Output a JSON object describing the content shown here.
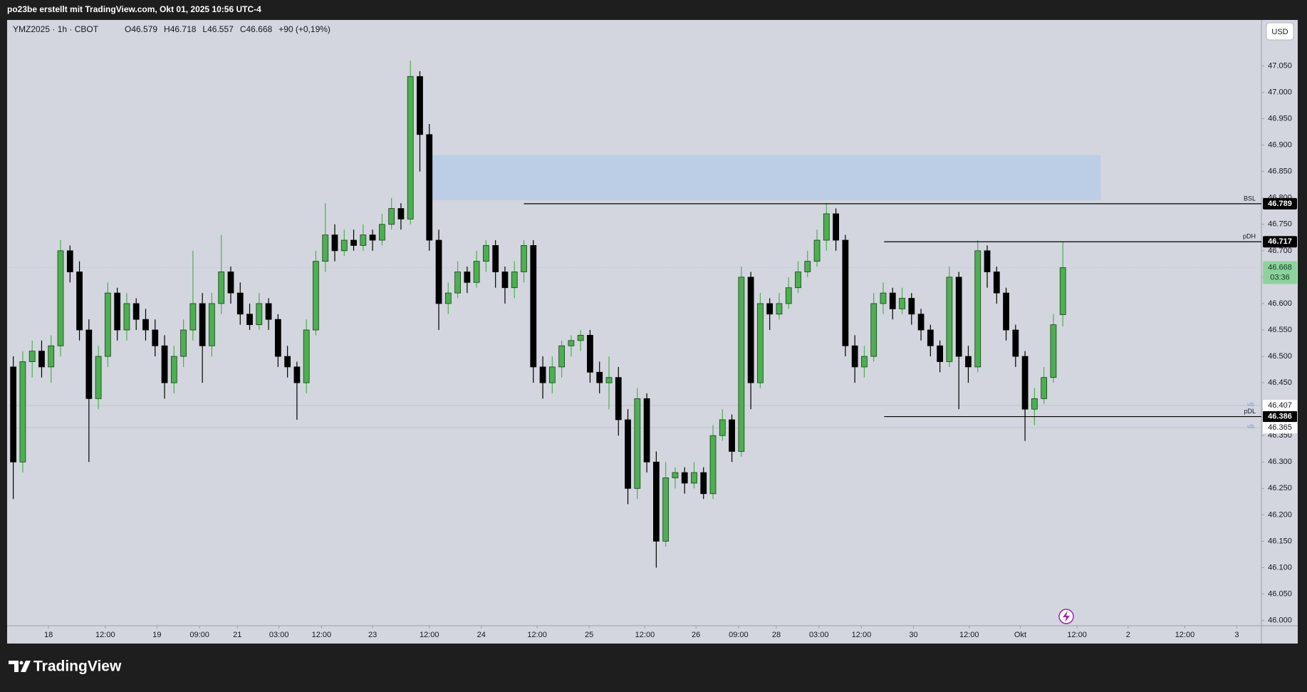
{
  "header": "po23be erstellt mit TradingView.com, Okt 01, 2025 10:56 UTC-4",
  "footer_logo": "TradingView",
  "chart_data": {
    "type": "candlestick",
    "title": "YMZ2025 · 1h · CBOT",
    "legend_values": [
      "O46.579",
      "H46.718",
      "L46.557",
      "C46.668",
      "+90 (+0,19%)"
    ],
    "currency": "USD",
    "countdown": "03:36",
    "up_color": "#4caf50",
    "down_color": "#000000",
    "ylim": [
      45.99,
      47.137
    ],
    "yticks": [
      {
        "value": 46.0,
        "label": "46.000"
      },
      {
        "value": 46.05,
        "label": "46.050"
      },
      {
        "value": 46.1,
        "label": "46.100"
      },
      {
        "value": 46.15,
        "label": "46.150"
      },
      {
        "value": 46.2,
        "label": "46.200"
      },
      {
        "value": 46.25,
        "label": "46.250"
      },
      {
        "value": 46.3,
        "label": "46.300"
      },
      {
        "value": 46.35,
        "label": "46.350"
      },
      {
        "value": 46.4,
        "label": "46.400"
      },
      {
        "value": 46.45,
        "label": "46.450"
      },
      {
        "value": 46.5,
        "label": "46.500"
      },
      {
        "value": 46.55,
        "label": "46.550"
      },
      {
        "value": 46.6,
        "label": "46.600"
      },
      {
        "value": 46.65,
        "label": "46.650"
      },
      {
        "value": 46.7,
        "label": "46.700"
      },
      {
        "value": 46.75,
        "label": "46.750"
      },
      {
        "value": 46.8,
        "label": "46.800"
      },
      {
        "value": 46.85,
        "label": "46.850"
      },
      {
        "value": 46.9,
        "label": "46.900"
      },
      {
        "value": 46.95,
        "label": "46.950"
      },
      {
        "value": 47.0,
        "label": "47.000"
      },
      {
        "value": 47.05,
        "label": "47.050"
      }
    ],
    "xlim": [
      -0.5,
      132.0
    ],
    "xticks": [
      {
        "value": 3.73,
        "label": "18"
      },
      {
        "value": 9.73,
        "label": "12:00"
      },
      {
        "value": 15.2,
        "label": "19"
      },
      {
        "value": 19.7,
        "label": "09:00"
      },
      {
        "value": 23.7,
        "label": "21"
      },
      {
        "value": 28.1,
        "label": "03:00"
      },
      {
        "value": 32.6,
        "label": "12:00"
      },
      {
        "value": 38.0,
        "label": "23"
      },
      {
        "value": 44.0,
        "label": "12:00"
      },
      {
        "value": 49.5,
        "label": "24"
      },
      {
        "value": 55.4,
        "label": "12:00"
      },
      {
        "value": 60.9,
        "label": "25"
      },
      {
        "value": 66.8,
        "label": "12:00"
      },
      {
        "value": 72.2,
        "label": "26"
      },
      {
        "value": 76.7,
        "label": "09:00"
      },
      {
        "value": 80.7,
        "label": "28"
      },
      {
        "value": 85.2,
        "label": "03:00"
      },
      {
        "value": 89.7,
        "label": "12:00"
      },
      {
        "value": 95.2,
        "label": "30"
      },
      {
        "value": 101.1,
        "label": "12:00"
      },
      {
        "value": 106.5,
        "label": "Okt"
      },
      {
        "value": 112.5,
        "label": "12:00"
      },
      {
        "value": 117.9,
        "label": "2"
      },
      {
        "value": 123.9,
        "label": "12:00"
      },
      {
        "value": 129.4,
        "label": "3"
      }
    ],
    "ohlc": [
      [
        46.48,
        46.5,
        46.23,
        46.3
      ],
      [
        46.3,
        46.51,
        46.28,
        46.49
      ],
      [
        46.49,
        46.53,
        46.46,
        46.51
      ],
      [
        46.51,
        46.53,
        46.46,
        46.48
      ],
      [
        46.48,
        46.54,
        46.45,
        46.52
      ],
      [
        46.52,
        46.72,
        46.5,
        46.7
      ],
      [
        46.7,
        46.71,
        46.64,
        46.66
      ],
      [
        46.66,
        46.68,
        46.53,
        46.55
      ],
      [
        46.55,
        46.57,
        46.3,
        46.42
      ],
      [
        46.42,
        46.52,
        46.4,
        46.5
      ],
      [
        46.5,
        46.64,
        46.48,
        46.62
      ],
      [
        46.62,
        46.63,
        46.53,
        46.55
      ],
      [
        46.55,
        46.62,
        46.53,
        46.6
      ],
      [
        46.6,
        46.61,
        46.55,
        46.57
      ],
      [
        46.57,
        46.59,
        46.53,
        46.55
      ],
      [
        46.55,
        46.57,
        46.5,
        46.52
      ],
      [
        46.52,
        46.54,
        46.42,
        46.45
      ],
      [
        46.45,
        46.52,
        46.43,
        46.5
      ],
      [
        46.5,
        46.57,
        46.48,
        46.55
      ],
      [
        46.55,
        46.7,
        46.53,
        46.6
      ],
      [
        46.6,
        46.62,
        46.45,
        46.52
      ],
      [
        46.52,
        46.62,
        46.5,
        46.6
      ],
      [
        46.6,
        46.73,
        46.58,
        46.66
      ],
      [
        46.66,
        46.67,
        46.6,
        46.62
      ],
      [
        46.62,
        46.64,
        46.56,
        46.58
      ],
      [
        46.58,
        46.6,
        46.55,
        46.56
      ],
      [
        46.56,
        46.62,
        46.55,
        46.6
      ],
      [
        46.6,
        46.61,
        46.55,
        46.57
      ],
      [
        46.57,
        46.58,
        46.48,
        46.5
      ],
      [
        46.5,
        46.52,
        46.46,
        46.48
      ],
      [
        46.48,
        46.49,
        46.38,
        46.45
      ],
      [
        46.45,
        46.57,
        46.43,
        46.55
      ],
      [
        46.55,
        46.7,
        46.54,
        46.68
      ],
      [
        46.68,
        46.79,
        46.66,
        46.73
      ],
      [
        46.73,
        46.75,
        46.68,
        46.7
      ],
      [
        46.7,
        46.74,
        46.69,
        46.72
      ],
      [
        46.72,
        46.74,
        46.7,
        46.71
      ],
      [
        46.71,
        46.75,
        46.7,
        46.73
      ],
      [
        46.73,
        46.74,
        46.7,
        46.72
      ],
      [
        46.72,
        46.77,
        46.71,
        46.75
      ],
      [
        46.75,
        46.8,
        46.74,
        46.78
      ],
      [
        46.78,
        46.79,
        46.74,
        46.76
      ],
      [
        46.76,
        47.06,
        46.75,
        47.03
      ],
      [
        47.03,
        47.04,
        46.85,
        46.92
      ],
      [
        46.92,
        46.94,
        46.7,
        46.72
      ],
      [
        46.72,
        46.74,
        46.55,
        46.6
      ],
      [
        46.6,
        46.64,
        46.58,
        46.62
      ],
      [
        46.62,
        46.68,
        46.61,
        46.66
      ],
      [
        46.66,
        46.67,
        46.62,
        46.64
      ],
      [
        46.64,
        46.7,
        46.63,
        46.68
      ],
      [
        46.68,
        46.72,
        46.66,
        46.71
      ],
      [
        46.71,
        46.72,
        46.63,
        46.66
      ],
      [
        46.66,
        46.67,
        46.6,
        46.63
      ],
      [
        46.63,
        46.68,
        46.61,
        46.66
      ],
      [
        46.66,
        46.72,
        46.64,
        46.71
      ],
      [
        46.71,
        46.72,
        46.45,
        46.48
      ],
      [
        46.48,
        46.5,
        46.42,
        46.45
      ],
      [
        46.45,
        46.5,
        46.43,
        46.48
      ],
      [
        46.48,
        46.53,
        46.46,
        46.52
      ],
      [
        46.52,
        46.54,
        46.5,
        46.53
      ],
      [
        46.53,
        46.55,
        46.51,
        46.54
      ],
      [
        46.54,
        46.55,
        46.45,
        46.47
      ],
      [
        46.47,
        46.49,
        46.43,
        46.45
      ],
      [
        46.45,
        46.5,
        46.4,
        46.46
      ],
      [
        46.46,
        46.48,
        46.35,
        46.38
      ],
      [
        46.38,
        46.4,
        46.22,
        46.25
      ],
      [
        46.25,
        46.44,
        46.23,
        46.42
      ],
      [
        46.42,
        46.43,
        46.28,
        46.3
      ],
      [
        46.3,
        46.32,
        46.1,
        46.15
      ],
      [
        46.15,
        46.3,
        46.14,
        46.27
      ],
      [
        46.27,
        46.29,
        46.25,
        46.28
      ],
      [
        46.28,
        46.29,
        46.24,
        46.26
      ],
      [
        46.26,
        46.3,
        46.25,
        46.28
      ],
      [
        46.28,
        46.29,
        46.23,
        46.24
      ],
      [
        46.24,
        46.37,
        46.23,
        46.35
      ],
      [
        46.35,
        46.4,
        46.34,
        46.38
      ],
      [
        46.38,
        46.39,
        46.3,
        46.32
      ],
      [
        46.32,
        46.67,
        46.31,
        46.65
      ],
      [
        46.65,
        46.66,
        46.4,
        46.45
      ],
      [
        46.45,
        46.62,
        46.44,
        46.6
      ],
      [
        46.6,
        46.61,
        46.55,
        46.58
      ],
      [
        46.58,
        46.62,
        46.57,
        46.6
      ],
      [
        46.6,
        46.65,
        46.59,
        46.63
      ],
      [
        46.63,
        46.68,
        46.62,
        46.66
      ],
      [
        46.66,
        46.7,
        46.65,
        46.68
      ],
      [
        46.68,
        46.74,
        46.67,
        46.72
      ],
      [
        46.72,
        46.79,
        46.7,
        46.77
      ],
      [
        46.77,
        46.78,
        46.7,
        46.72
      ],
      [
        46.72,
        46.73,
        46.5,
        46.52
      ],
      [
        46.52,
        46.54,
        46.45,
        46.48
      ],
      [
        46.48,
        46.52,
        46.46,
        46.5
      ],
      [
        46.5,
        46.62,
        46.49,
        46.6
      ],
      [
        46.6,
        46.64,
        46.58,
        46.62
      ],
      [
        46.62,
        46.63,
        46.57,
        46.59
      ],
      [
        46.59,
        46.63,
        46.58,
        46.61
      ],
      [
        46.61,
        46.62,
        46.56,
        46.58
      ],
      [
        46.58,
        46.59,
        46.53,
        46.55
      ],
      [
        46.55,
        46.56,
        46.5,
        46.52
      ],
      [
        46.52,
        46.53,
        46.47,
        46.49
      ],
      [
        46.49,
        46.67,
        46.48,
        46.65
      ],
      [
        46.65,
        46.66,
        46.4,
        46.5
      ],
      [
        46.5,
        46.52,
        46.45,
        46.48
      ],
      [
        46.48,
        46.72,
        46.47,
        46.7
      ],
      [
        46.7,
        46.71,
        46.63,
        46.66
      ],
      [
        46.66,
        46.67,
        46.6,
        46.62
      ],
      [
        46.62,
        46.63,
        46.53,
        46.55
      ],
      [
        46.55,
        46.56,
        46.48,
        46.5
      ],
      [
        46.5,
        46.51,
        46.34,
        46.4
      ],
      [
        46.4,
        46.44,
        46.37,
        46.42
      ],
      [
        46.42,
        46.48,
        46.41,
        46.46
      ],
      [
        46.46,
        46.58,
        46.45,
        46.56
      ],
      [
        46.579,
        46.718,
        46.557,
        46.668
      ]
    ],
    "zones": [
      {
        "y0": 46.796,
        "y1": 46.881,
        "x0": 43.8,
        "x1": 115.0,
        "color": "#bccde6"
      }
    ],
    "levels": [
      {
        "name": "BSL",
        "value": 46.789,
        "x0": 54.0
      },
      {
        "name": "pDH",
        "value": 46.717,
        "x0": 92.1
      },
      {
        "name": "pDL",
        "value": 46.386,
        "x0": 92.1
      }
    ],
    "vib_levels": [
      {
        "name": "vib",
        "value": 46.407
      },
      {
        "name": "vib",
        "value": 46.365
      }
    ]
  }
}
